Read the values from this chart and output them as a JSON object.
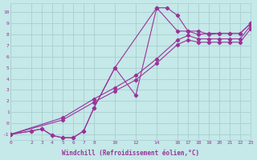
{
  "bg_color": "#c5e8e8",
  "grid_color": "#a8d0d0",
  "line_color": "#993399",
  "xlim": [
    0,
    23
  ],
  "ylim": [
    -1.5,
    10.8
  ],
  "xticks": [
    0,
    2,
    3,
    4,
    5,
    6,
    7,
    8,
    10,
    12,
    14,
    16,
    17,
    18,
    19,
    20,
    21,
    22,
    23
  ],
  "yticks": [
    -1,
    0,
    1,
    2,
    3,
    4,
    5,
    6,
    7,
    8,
    9,
    10
  ],
  "xlabel": "Windchill (Refroidissement éolien,°C)",
  "line1_x": [
    0,
    2,
    3,
    4,
    5,
    6,
    7,
    8,
    10,
    12,
    14,
    15,
    16,
    17,
    18,
    19,
    20,
    21,
    22,
    23
  ],
  "line1_y": [
    -1.0,
    -0.7,
    -0.5,
    -1.1,
    -1.3,
    -1.3,
    -0.7,
    1.4,
    5.0,
    2.5,
    10.4,
    10.4,
    9.7,
    8.3,
    8.3,
    8.0,
    8.1,
    8.1,
    8.1,
    9.0
  ],
  "line2_x": [
    0,
    2,
    3,
    4,
    5,
    6,
    7,
    8,
    10,
    14,
    16,
    17,
    18,
    19,
    20,
    21,
    22,
    23
  ],
  "line2_y": [
    -1.0,
    -0.7,
    -0.5,
    -1.1,
    -1.3,
    -1.3,
    -0.7,
    1.4,
    5.0,
    10.4,
    8.3,
    8.3,
    8.0,
    8.1,
    8.1,
    8.1,
    8.1,
    9.0
  ],
  "line3_x": [
    0,
    5,
    8,
    10,
    12,
    14,
    16,
    17,
    18,
    19,
    20,
    21,
    22,
    23
  ],
  "line3_y": [
    -1.0,
    0.5,
    2.2,
    3.2,
    4.3,
    5.8,
    7.5,
    7.9,
    7.6,
    7.6,
    7.6,
    7.6,
    7.6,
    8.8
  ],
  "line4_x": [
    0,
    5,
    8,
    10,
    12,
    14,
    16,
    17,
    18,
    19,
    20,
    21,
    22,
    23
  ],
  "line4_y": [
    -1.0,
    0.3,
    1.9,
    2.9,
    3.9,
    5.4,
    7.1,
    7.5,
    7.3,
    7.3,
    7.3,
    7.3,
    7.3,
    8.5
  ]
}
